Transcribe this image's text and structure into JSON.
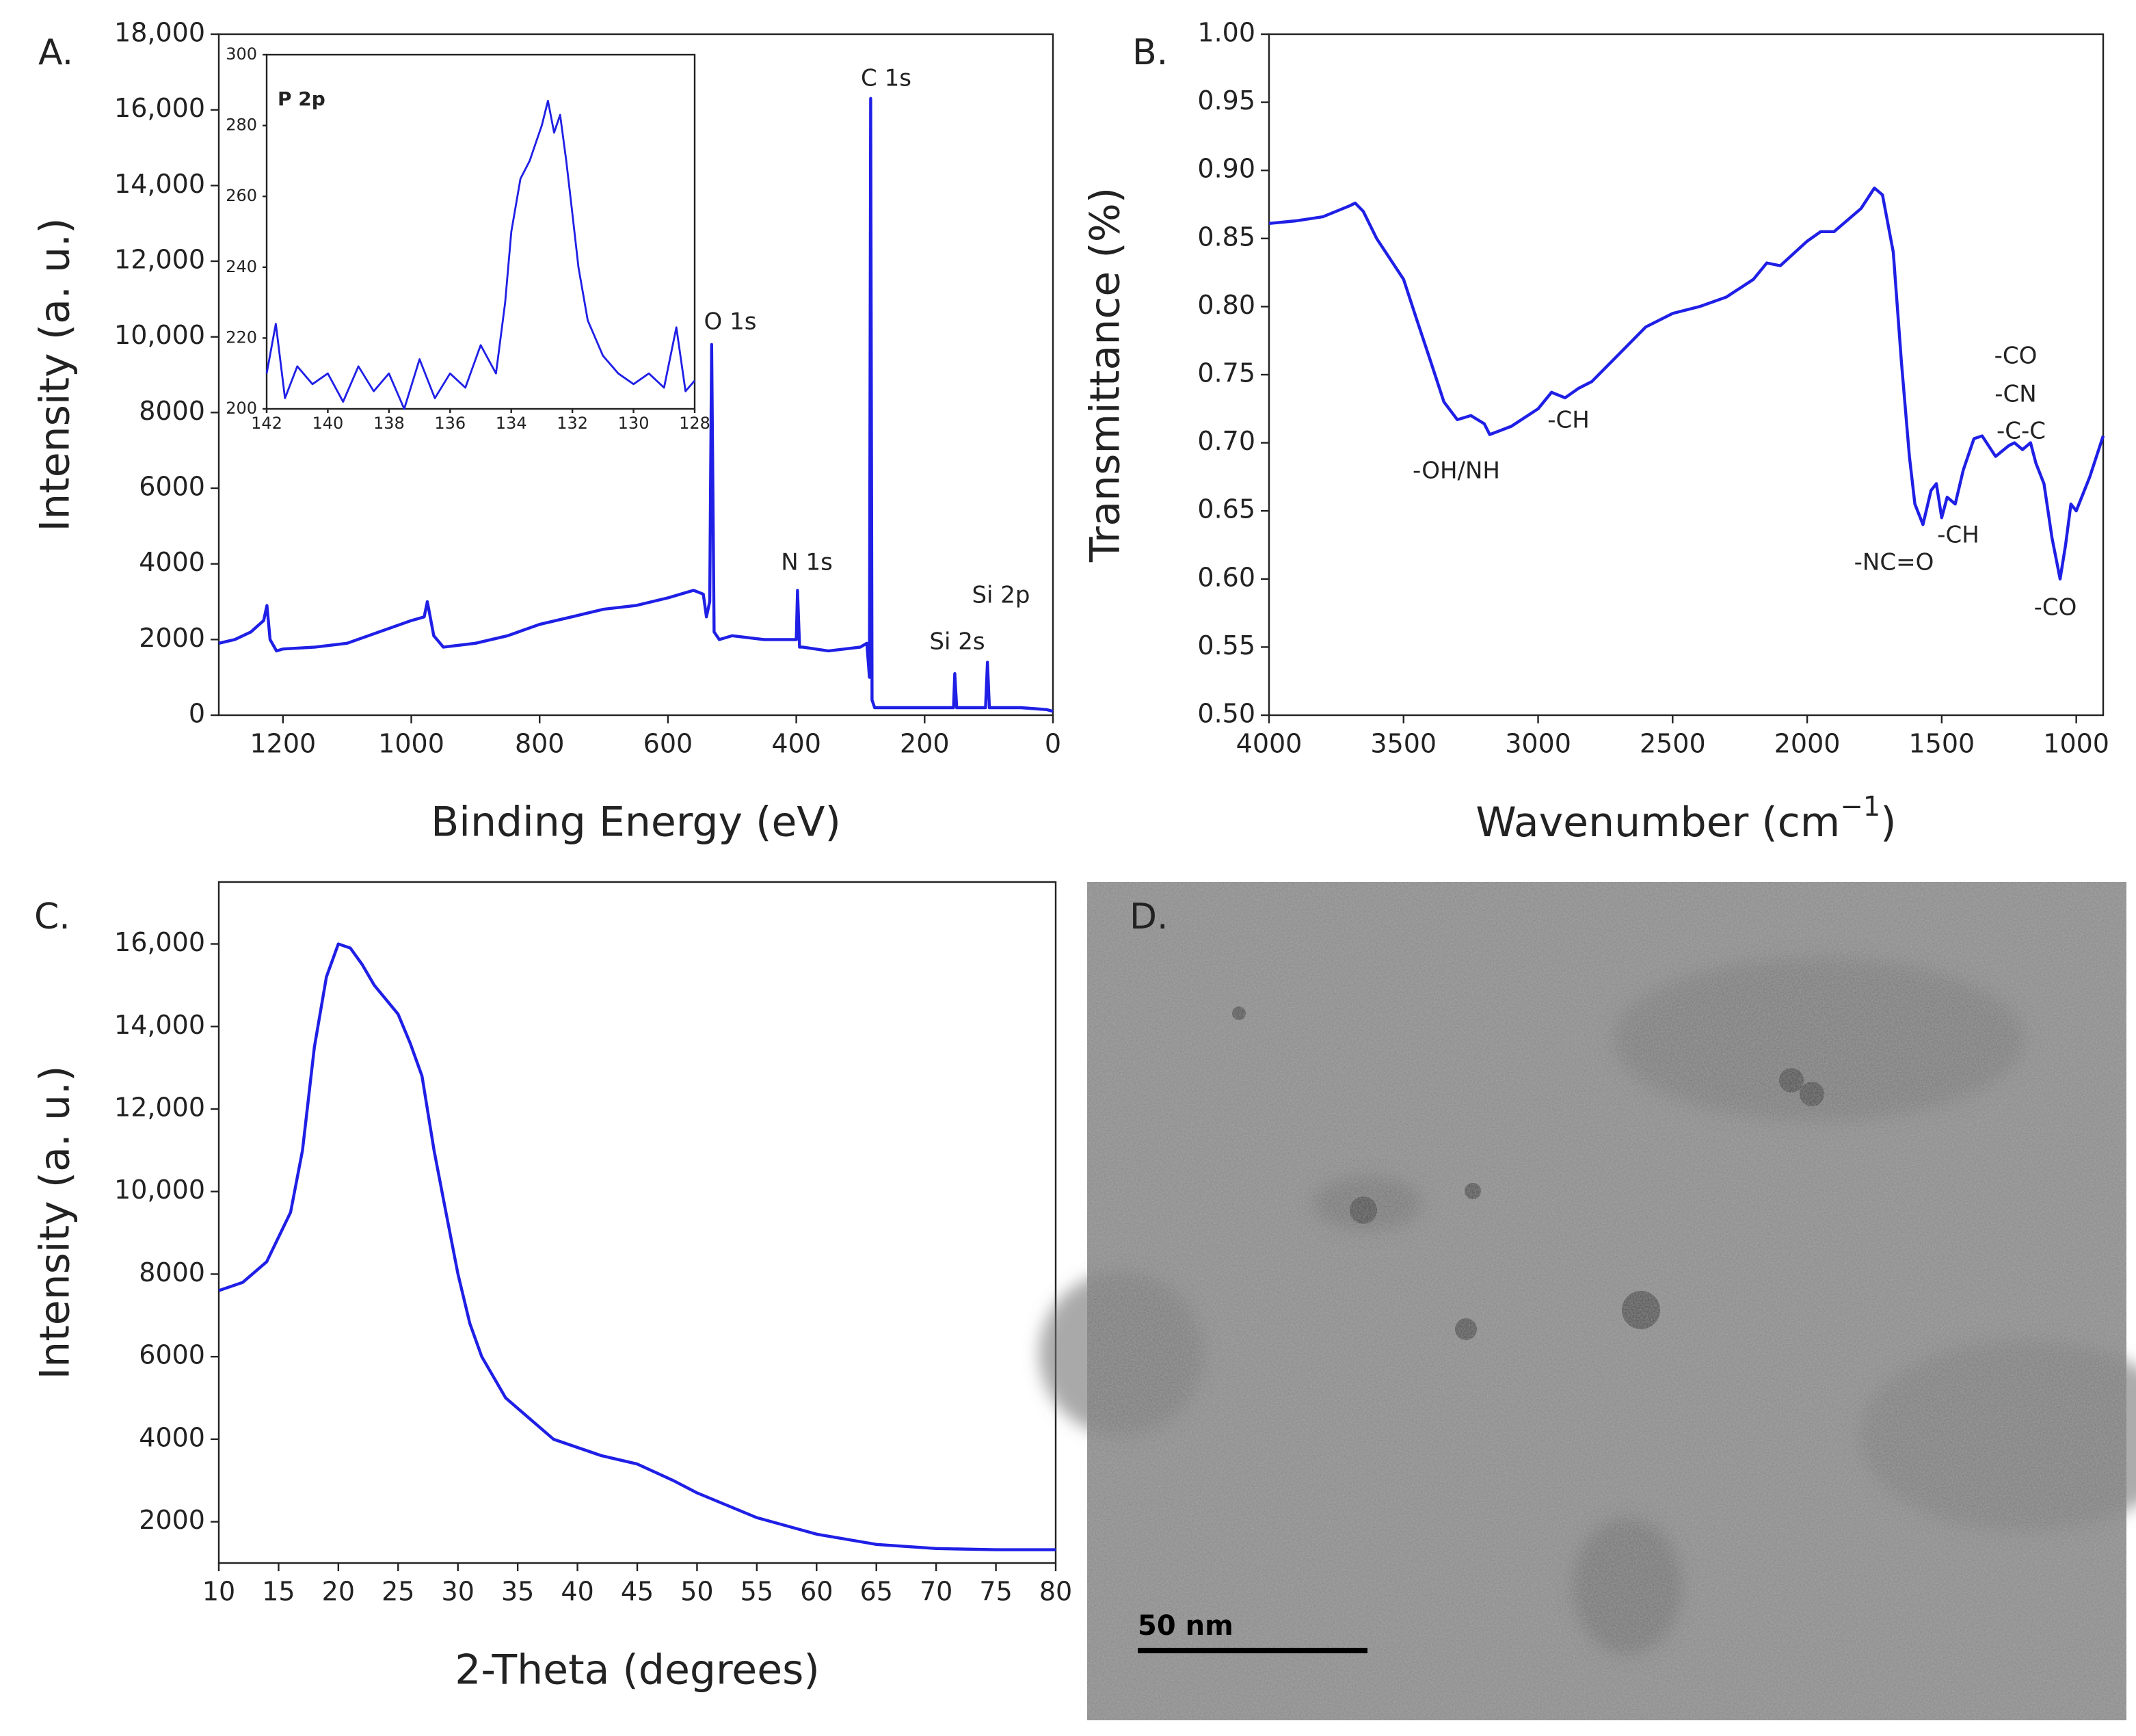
{
  "chart_data": [
    {
      "type": "line",
      "panel_label": "A.",
      "xlabel": "Binding Energy (eV)",
      "ylabel": "Intensity (a. u.)",
      "color": "#1f1fe6",
      "x": [
        1300,
        1275,
        1250,
        1230,
        1225,
        1220,
        1210,
        1200,
        1150,
        1100,
        1050,
        1000,
        980,
        975,
        965,
        950,
        900,
        850,
        800,
        750,
        700,
        650,
        600,
        560,
        545,
        540,
        535,
        532,
        528,
        520,
        500,
        450,
        400,
        398,
        395,
        390,
        350,
        300,
        290,
        286,
        284,
        282,
        278,
        250,
        200,
        155,
        153,
        150,
        105,
        102,
        99,
        50,
        10,
        0
      ],
      "values": [
        1900,
        2000,
        2200,
        2500,
        2900,
        2000,
        1700,
        1750,
        1800,
        1900,
        2200,
        2500,
        2600,
        3000,
        2100,
        1800,
        1900,
        2100,
        2400,
        2600,
        2800,
        2900,
        3100,
        3300,
        3200,
        2600,
        3000,
        9800,
        2200,
        2000,
        2100,
        2000,
        2000,
        3300,
        1800,
        1800,
        1700,
        1800,
        1900,
        1000,
        16300,
        400,
        200,
        200,
        200,
        200,
        1100,
        200,
        200,
        1400,
        200,
        200,
        150,
        100
      ],
      "xlim": [
        1300,
        0
      ],
      "ylim": [
        0,
        18000
      ],
      "xticks": [
        1200,
        1000,
        800,
        600,
        400,
        200,
        0
      ],
      "yticks": [
        0,
        2000,
        4000,
        6000,
        8000,
        {
          "value": 10000,
          "label": "10,000"
        },
        {
          "value": 12000,
          "label": "12,000"
        },
        {
          "value": 14000,
          "label": "14,000"
        },
        {
          "value": 16000,
          "label": "16,000"
        },
        {
          "value": 18000,
          "label": "18,000"
        }
      ],
      "annotations": [
        "C 1s",
        "O 1s",
        "N 1s",
        "Si 2s",
        "Si 2p"
      ]
    },
    {
      "type": "line",
      "title": "P 2p",
      "color": "#1f1fe6",
      "x": [
        142,
        141.7,
        141.4,
        141,
        140.5,
        140,
        139.5,
        139,
        138.5,
        138,
        137.5,
        137,
        136.5,
        136,
        135.5,
        135,
        134.5,
        134.2,
        134,
        133.7,
        133.4,
        133.2,
        133,
        132.8,
        132.6,
        132.4,
        132.2,
        132,
        131.8,
        131.5,
        131,
        130.5,
        130,
        129.5,
        129,
        128.6,
        128.3,
        128
      ],
      "values": [
        210,
        224,
        203,
        212,
        207,
        210,
        202,
        212,
        205,
        210,
        200,
        214,
        203,
        210,
        206,
        218,
        210,
        230,
        250,
        265,
        270,
        275,
        280,
        287,
        278,
        283,
        270,
        255,
        240,
        225,
        215,
        210,
        207,
        210,
        206,
        223,
        205,
        208
      ],
      "xlim": [
        142,
        128
      ],
      "ylim": [
        200,
        300
      ],
      "xticks": [
        142,
        140,
        138,
        136,
        134,
        132,
        130,
        128
      ],
      "yticks": [
        200,
        220,
        240,
        260,
        280,
        300
      ]
    },
    {
      "type": "line",
      "panel_label": "B.",
      "xlabel": {
        "text": "Wavenumber (cm",
        "sup": "−1",
        "tail": ")"
      },
      "ylabel": "Transmittance (%)",
      "color": "#1f1fe6",
      "x": [
        4000,
        3900,
        3800,
        3700,
        3680,
        3650,
        3600,
        3500,
        3450,
        3400,
        3350,
        3300,
        3250,
        3200,
        3180,
        3100,
        3000,
        2950,
        2900,
        2850,
        2800,
        2700,
        2600,
        2500,
        2400,
        2300,
        2200,
        2150,
        2100,
        2000,
        1950,
        1900,
        1800,
        1750,
        1720,
        1680,
        1650,
        1620,
        1600,
        1570,
        1540,
        1520,
        1500,
        1480,
        1450,
        1420,
        1380,
        1350,
        1300,
        1250,
        1230,
        1200,
        1170,
        1150,
        1120,
        1090,
        1060,
        1040,
        1020,
        1000,
        950,
        900
      ],
      "values": [
        0.861,
        0.863,
        0.866,
        0.874,
        0.876,
        0.87,
        0.85,
        0.82,
        0.79,
        0.76,
        0.73,
        0.717,
        0.72,
        0.714,
        0.706,
        0.712,
        0.725,
        0.737,
        0.733,
        0.74,
        0.745,
        0.765,
        0.785,
        0.795,
        0.8,
        0.807,
        0.82,
        0.832,
        0.83,
        0.848,
        0.855,
        0.855,
        0.872,
        0.887,
        0.882,
        0.84,
        0.76,
        0.69,
        0.655,
        0.64,
        0.665,
        0.67,
        0.645,
        0.66,
        0.655,
        0.68,
        0.703,
        0.705,
        0.69,
        0.698,
        0.7,
        0.695,
        0.7,
        0.685,
        0.67,
        0.63,
        0.6,
        0.625,
        0.655,
        0.65,
        0.675,
        0.705
      ],
      "xlim": [
        4000,
        900
      ],
      "ylim": [
        0.5,
        1.0
      ],
      "xticks": [
        4000,
        3500,
        3000,
        2500,
        2000,
        1500,
        1000
      ],
      "yticks": [
        {
          "value": 0.5,
          "label": "0.50"
        },
        0.55,
        {
          "value": 0.6,
          "label": "0.60"
        },
        0.65,
        {
          "value": 0.7,
          "label": "0.70"
        },
        0.75,
        {
          "value": 0.8,
          "label": "0.80"
        },
        0.85,
        {
          "value": 0.9,
          "label": "0.90"
        },
        0.95,
        {
          "value": 1.0,
          "label": "1.00"
        }
      ],
      "annotations": [
        "-OH/NH",
        "-CH",
        "-NC=O",
        "-CH",
        "-CO",
        "-CN",
        "-C-C",
        "-CO"
      ]
    },
    {
      "type": "line",
      "panel_label": "C.",
      "xlabel": "2-Theta (degrees)",
      "ylabel": "Intensity (a. u.)",
      "color": "#1f1fe6",
      "x": [
        10,
        12,
        14,
        16,
        17,
        18,
        19,
        20,
        21,
        22,
        23,
        25,
        26,
        27,
        28,
        29,
        30,
        31,
        32,
        34,
        36,
        38,
        40,
        42,
        45,
        48,
        50,
        55,
        60,
        65,
        70,
        75,
        80
      ],
      "values": [
        7600,
        7800,
        8300,
        9500,
        11000,
        13500,
        15200,
        16000,
        15900,
        15500,
        15000,
        14300,
        13600,
        12800,
        11000,
        9500,
        8000,
        6800,
        6000,
        5000,
        4500,
        4000,
        3800,
        3600,
        3400,
        3000,
        2700,
        2100,
        1700,
        1450,
        1350,
        1320,
        1320
      ],
      "xlim": [
        10,
        80
      ],
      "ylim": [
        1000,
        17500
      ],
      "xticks": [
        10,
        15,
        20,
        25,
        30,
        35,
        40,
        45,
        50,
        55,
        60,
        65,
        70,
        75,
        80
      ],
      "yticks": [
        2000,
        4000,
        6000,
        8000,
        {
          "value": 10000,
          "label": "10,000"
        },
        {
          "value": 12000,
          "label": "12,000"
        },
        {
          "value": 14000,
          "label": "14,000"
        },
        {
          "value": 16000,
          "label": "16,000"
        }
      ]
    },
    {
      "type": "image",
      "panel_label": "D.",
      "scale_bar": "50 nm"
    }
  ]
}
